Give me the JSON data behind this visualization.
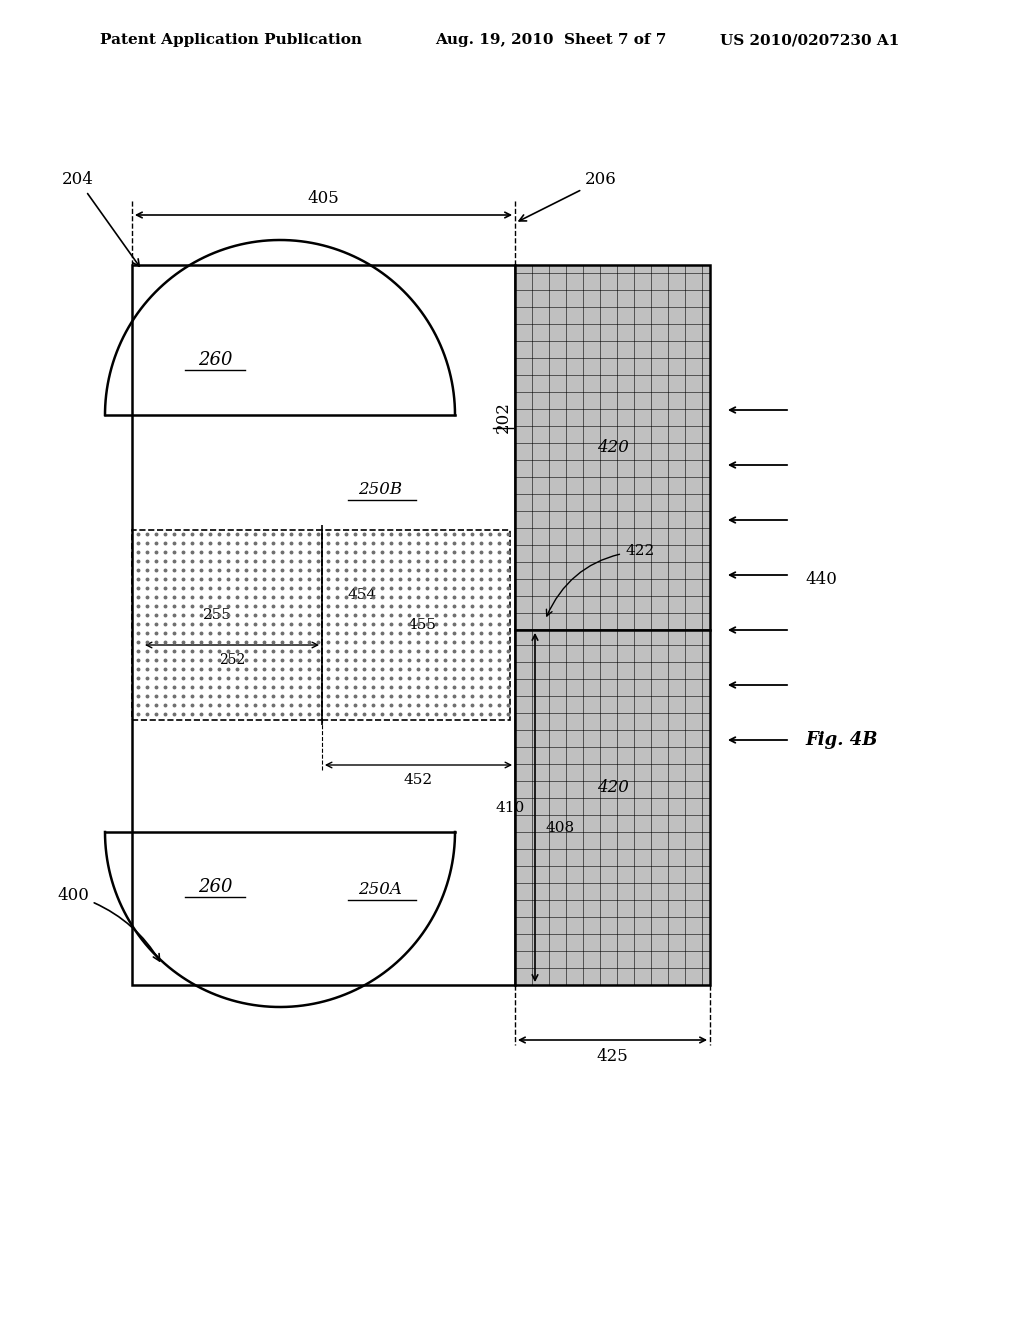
{
  "header_left": "Patent Application Publication",
  "header_mid": "Aug. 19, 2010  Sheet 7 of 7",
  "header_right": "US 2010/0207230 A1",
  "fig_label": "Fig. 4B",
  "bg_color": "#ffffff",
  "grid_color": "#b0b0b0",
  "dot_color": "#909090",
  "labels": {
    "400": "400",
    "204": "204",
    "206": "206",
    "202": "202",
    "405": "405",
    "260_top": "260",
    "260_bot": "260",
    "250B": "250B",
    "250A": "250A",
    "255": "255",
    "252": "252",
    "454": "454",
    "455": "455",
    "452": "452",
    "410": "410",
    "408": "408",
    "420_top": "420",
    "420_bot": "420",
    "422": "422",
    "425": "425",
    "440": "440"
  }
}
